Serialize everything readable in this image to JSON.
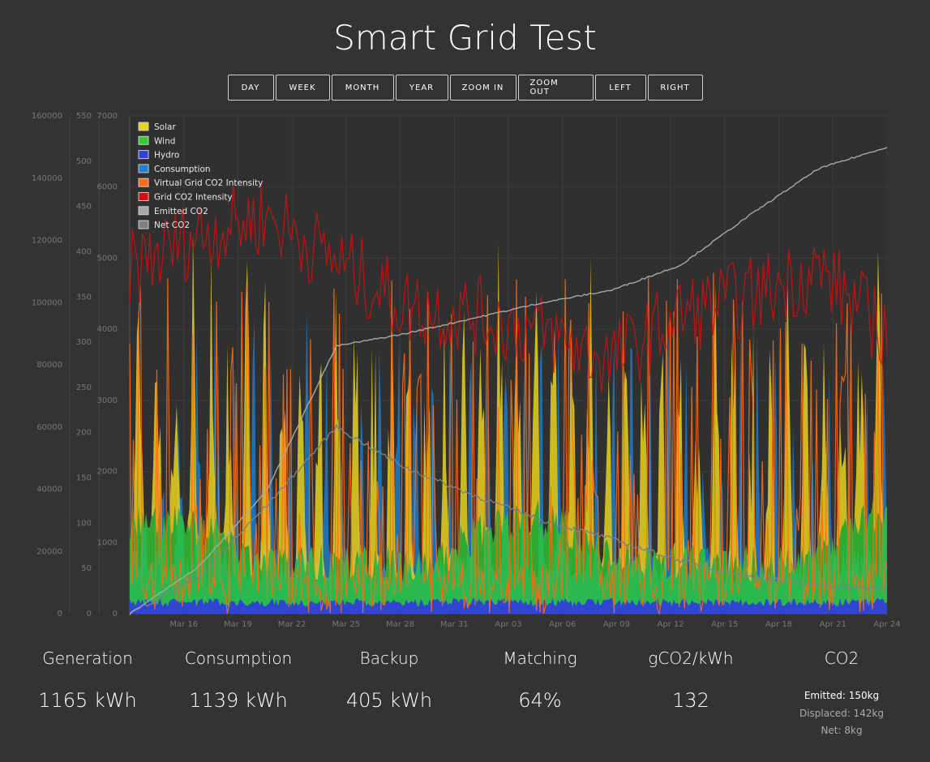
{
  "page_title": "Smart Grid Test",
  "toolbar": {
    "buttons": [
      "DAY",
      "WEEK",
      "MONTH",
      "YEAR",
      "ZOOM IN",
      "ZOOM OUT",
      "LEFT",
      "RIGHT"
    ]
  },
  "colors": {
    "background": "#333333",
    "solar": "#e8d21e",
    "wind": "#2fd12f",
    "hydro": "#3340d6",
    "consumption": "#1f7fd1",
    "virtual_grid_co2": "#ff6a10",
    "grid_co2": "#d01010",
    "emitted_co2": "#a8a8a8",
    "net_co2": "#808080"
  },
  "chart_data": {
    "type": "area",
    "legend": {
      "placement": "top-left",
      "items": [
        "Solar",
        "Wind",
        "Hydro",
        "Consumption",
        "Virtual Grid CO2 Intensity",
        "Grid CO2 Intensity",
        "Emitted CO2",
        "Net CO2"
      ]
    },
    "x_ticks": [
      "Mar 16",
      "Mar 19",
      "Mar 22",
      "Mar 25",
      "Mar 28",
      "Mar 31",
      "Apr 03",
      "Apr 06",
      "Apr 09",
      "Apr 12",
      "Apr 15",
      "Apr 18",
      "Apr 21",
      "Apr 24"
    ],
    "x_range": [
      "Mar 13",
      "Apr 24"
    ],
    "y_axes": [
      {
        "name": "power",
        "ticks": [
          0,
          1000,
          2000,
          3000,
          4000,
          5000,
          6000,
          7000
        ],
        "range": [
          0,
          7000
        ]
      },
      {
        "name": "intensity",
        "ticks": [
          0,
          50,
          100,
          150,
          200,
          250,
          300,
          350,
          400,
          450,
          500,
          550
        ],
        "range": [
          0,
          550
        ]
      },
      {
        "name": "co2",
        "ticks": [
          0,
          20000,
          40000,
          60000,
          80000,
          100000,
          120000,
          140000,
          160000
        ],
        "range": [
          0,
          160000
        ]
      }
    ],
    "grid": true,
    "series": [
      {
        "name": "Grid CO2 Intensity",
        "axis": "intensity",
        "x": [
          "Mar 13",
          "Mar 17",
          "Mar 21",
          "Mar 25",
          "Mar 29",
          "Apr 02",
          "Apr 06",
          "Apr 10",
          "Apr 14",
          "Apr 18",
          "Apr 22",
          "Apr 24"
        ],
        "values": [
          380,
          420,
          440,
          390,
          340,
          330,
          310,
          280,
          330,
          350,
          380,
          310
        ]
      },
      {
        "name": "Emitted CO2",
        "axis": "co2",
        "x": [
          "Mar 13",
          "Mar 17",
          "Mar 21",
          "Mar 25",
          "Mar 29",
          "Apr 02",
          "Apr 06",
          "Apr 10",
          "Apr 14",
          "Apr 18",
          "Apr 22",
          "Apr 24"
        ],
        "values": [
          0,
          15000,
          40000,
          86000,
          90000,
          95000,
          100000,
          104000,
          112000,
          128000,
          143000,
          150000
        ]
      },
      {
        "name": "Net CO2",
        "axis": "co2",
        "x": [
          "Mar 13",
          "Mar 17",
          "Mar 21",
          "Mar 25",
          "Mar 29",
          "Apr 02",
          "Apr 06",
          "Apr 10",
          "Apr 14",
          "Apr 18",
          "Apr 22",
          "Apr 24"
        ],
        "values": [
          0,
          12000,
          35000,
          60000,
          47000,
          38000,
          30000,
          24000,
          17000,
          12000,
          9000,
          8000
        ]
      }
    ]
  },
  "stats": [
    {
      "label": "Generation",
      "value": "1165 kWh"
    },
    {
      "label": "Consumption",
      "value": "1139 kWh"
    },
    {
      "label": "Backup",
      "value": "405 kWh"
    },
    {
      "label": "Matching",
      "value": "64%"
    },
    {
      "label": "gCO2/kWh",
      "value": "132"
    }
  ],
  "co2": {
    "label": "CO2",
    "emitted": "Emitted: 150kg",
    "displaced": "Displaced: 142kg",
    "net": "Net: 8kg"
  }
}
